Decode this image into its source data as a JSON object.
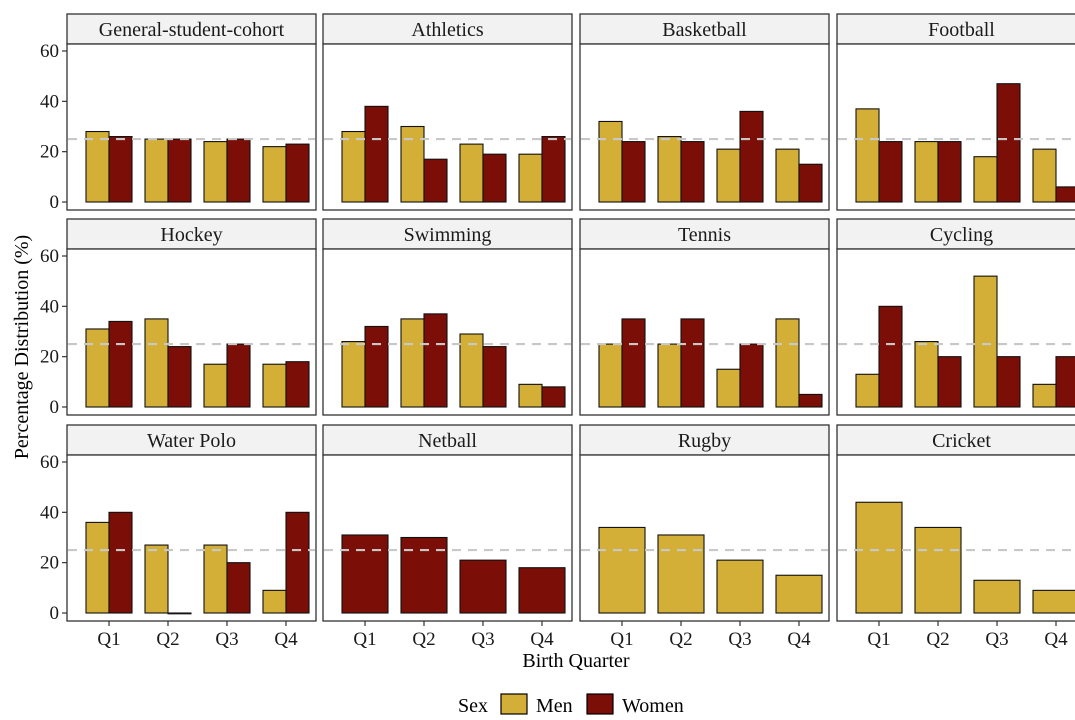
{
  "chart_data": {
    "type": "bar",
    "facet_layout": "4 columns x 3 rows",
    "categories": [
      "Q1",
      "Q2",
      "Q3",
      "Q4"
    ],
    "xlabel": "Birth Quarter",
    "ylabel": "Percentage Distribution (%)",
    "ylim": [
      0,
      60
    ],
    "yticks": [
      0,
      20,
      40,
      60
    ],
    "reference_line": {
      "y": 25,
      "style": "dashed",
      "color": "#c8c8c8"
    },
    "colors": {
      "Men": "#d4af37",
      "Women": "#7b0e06"
    },
    "legend": {
      "title": "Sex",
      "placement": "bottom",
      "entries": [
        "Men",
        "Women"
      ]
    },
    "panels": [
      {
        "title": "General-student-cohort",
        "series": [
          {
            "name": "Men",
            "values": [
              28,
              25,
              24,
              22
            ]
          },
          {
            "name": "Women",
            "values": [
              26,
              25,
              25,
              23
            ]
          }
        ]
      },
      {
        "title": "Athletics",
        "series": [
          {
            "name": "Men",
            "values": [
              28,
              30,
              23,
              19
            ]
          },
          {
            "name": "Women",
            "values": [
              38,
              17,
              19,
              26
            ]
          }
        ]
      },
      {
        "title": "Basketball",
        "series": [
          {
            "name": "Men",
            "values": [
              32,
              26,
              21,
              21
            ]
          },
          {
            "name": "Women",
            "values": [
              24,
              24,
              36,
              15
            ]
          }
        ]
      },
      {
        "title": "Football",
        "series": [
          {
            "name": "Men",
            "values": [
              37,
              24,
              18,
              21
            ]
          },
          {
            "name": "Women",
            "values": [
              24,
              24,
              47,
              6
            ]
          }
        ]
      },
      {
        "title": "Hockey",
        "series": [
          {
            "name": "Men",
            "values": [
              31,
              35,
              17,
              17
            ]
          },
          {
            "name": "Women",
            "values": [
              34,
              24,
              25,
              18
            ]
          }
        ]
      },
      {
        "title": "Swimming",
        "series": [
          {
            "name": "Men",
            "values": [
              26,
              35,
              29,
              9
            ]
          },
          {
            "name": "Women",
            "values": [
              32,
              37,
              24,
              8
            ]
          }
        ]
      },
      {
        "title": "Tennis",
        "series": [
          {
            "name": "Men",
            "values": [
              25,
              25,
              15,
              35
            ]
          },
          {
            "name": "Women",
            "values": [
              35,
              35,
              25,
              5
            ]
          }
        ]
      },
      {
        "title": "Cycling",
        "series": [
          {
            "name": "Men",
            "values": [
              13,
              26,
              52,
              9
            ]
          },
          {
            "name": "Women",
            "values": [
              40,
              20,
              20,
              20
            ]
          }
        ]
      },
      {
        "title": "Water Polo",
        "series": [
          {
            "name": "Men",
            "values": [
              36,
              27,
              27,
              9
            ]
          },
          {
            "name": "Women",
            "values": [
              40,
              0,
              20,
              40
            ]
          }
        ]
      },
      {
        "title": "Netball",
        "series": [
          {
            "name": "Women",
            "values": [
              31,
              30,
              21,
              18
            ]
          }
        ]
      },
      {
        "title": "Rugby",
        "series": [
          {
            "name": "Men",
            "values": [
              34,
              31,
              21,
              15
            ]
          }
        ]
      },
      {
        "title": "Cricket",
        "series": [
          {
            "name": "Men",
            "values": [
              44,
              34,
              13,
              9
            ]
          }
        ]
      }
    ]
  }
}
